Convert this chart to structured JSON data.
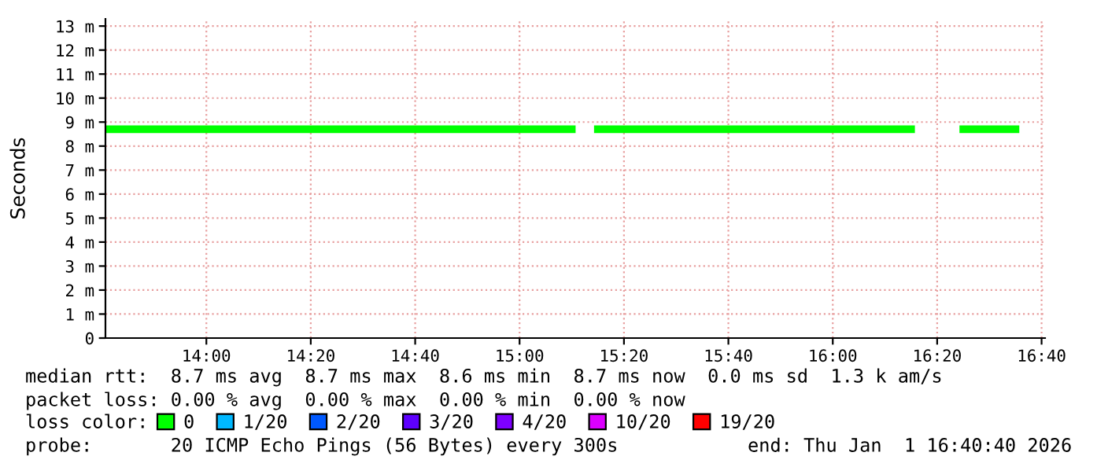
{
  "chart_data": {
    "type": "step",
    "ylabel": "Seconds",
    "x": [
      13.6833,
      13.75,
      13.8333,
      13.9167,
      14.0,
      14.0833,
      14.1667,
      14.25,
      14.3333,
      14.4167,
      14.5,
      14.5833,
      14.6667,
      14.75,
      14.8333,
      14.9167,
      15.0,
      15.0833,
      15.1667,
      15.25,
      15.3333,
      15.4167,
      15.5,
      15.5833,
      15.6667,
      15.75,
      15.8333,
      15.9167,
      16.0,
      16.0833,
      16.1667,
      16.25,
      16.3333,
      16.4167,
      16.5,
      16.5833
    ],
    "series": [
      {
        "name": "0",
        "color": "#00ff00",
        "values": [
          8.7,
          8.7,
          8.7,
          8.7,
          8.7,
          8.7,
          8.7,
          8.7,
          8.7,
          8.7,
          8.7,
          8.7,
          8.7,
          8.7,
          8.7,
          8.7,
          8.7,
          8.7,
          null,
          8.7,
          8.7,
          8.7,
          8.7,
          8.7,
          8.7,
          8.7,
          8.7,
          8.7,
          8.7,
          8.7,
          8.7,
          null,
          null,
          8.7,
          8.7,
          8.7
        ]
      },
      {
        "name": "1/20",
        "color": "#00b8ff",
        "values": [
          null,
          null,
          null,
          null,
          null,
          null,
          null,
          null,
          null,
          null,
          null,
          null,
          null,
          null,
          null,
          null,
          null,
          null,
          null,
          null,
          null,
          null,
          null,
          null,
          null,
          null,
          null,
          null,
          null,
          null,
          null,
          null,
          null,
          null,
          null,
          null
        ]
      },
      {
        "name": "2/20",
        "color": "#0059ff",
        "values": [
          null,
          null,
          null,
          null,
          null,
          null,
          null,
          null,
          null,
          null,
          null,
          null,
          null,
          null,
          null,
          null,
          null,
          null,
          null,
          null,
          null,
          null,
          null,
          null,
          null,
          null,
          null,
          null,
          null,
          null,
          null,
          null,
          null,
          null,
          null,
          null
        ]
      },
      {
        "name": "3/20",
        "color": "#5e00ff",
        "values": [
          null,
          null,
          null,
          null,
          null,
          null,
          null,
          null,
          null,
          null,
          null,
          null,
          null,
          null,
          null,
          null,
          null,
          null,
          null,
          null,
          null,
          null,
          null,
          null,
          null,
          null,
          null,
          null,
          null,
          null,
          null,
          null,
          null,
          null,
          null,
          null
        ]
      },
      {
        "name": "4/20",
        "color": "#7e00ff",
        "values": [
          null,
          null,
          null,
          null,
          null,
          null,
          null,
          null,
          null,
          null,
          null,
          null,
          null,
          null,
          null,
          null,
          null,
          null,
          null,
          null,
          null,
          null,
          null,
          null,
          null,
          null,
          null,
          null,
          null,
          null,
          null,
          null,
          null,
          null,
          null,
          null
        ]
      },
      {
        "name": "10/20",
        "color": "#dd00ff",
        "values": [
          null,
          null,
          null,
          null,
          null,
          null,
          null,
          null,
          null,
          null,
          null,
          null,
          null,
          null,
          null,
          null,
          null,
          null,
          null,
          null,
          null,
          null,
          null,
          null,
          null,
          null,
          null,
          null,
          null,
          null,
          null,
          null,
          null,
          null,
          null,
          null
        ]
      },
      {
        "name": "19/20",
        "color": "#ff0000",
        "values": [
          null,
          null,
          null,
          null,
          null,
          null,
          null,
          null,
          null,
          null,
          null,
          null,
          null,
          null,
          null,
          null,
          null,
          null,
          null,
          null,
          null,
          null,
          null,
          null,
          null,
          null,
          null,
          null,
          null,
          null,
          null,
          null,
          null,
          null,
          null,
          null
        ]
      }
    ],
    "legend": "bottom",
    "legend_title": "loss color:",
    "grid": true,
    "xlim": [
      13.6778,
      16.6778
    ],
    "xticks": [
      {
        "value": 14.0,
        "label": "14:00"
      },
      {
        "value": 14.3333,
        "label": "14:20"
      },
      {
        "value": 14.6667,
        "label": "14:40"
      },
      {
        "value": 15.0,
        "label": "15:00"
      },
      {
        "value": 15.3333,
        "label": "15:20"
      },
      {
        "value": 15.6667,
        "label": "15:40"
      },
      {
        "value": 16.0,
        "label": "16:00"
      },
      {
        "value": 16.3333,
        "label": "16:20"
      },
      {
        "value": 16.6667,
        "label": "16:40"
      }
    ],
    "ylim": [
      0,
      13.3
    ],
    "yticks": [
      0,
      {
        "value": 1,
        "label": "1 m"
      },
      {
        "value": 2,
        "label": "2 m"
      },
      {
        "value": 3,
        "label": "3 m"
      },
      {
        "value": 4,
        "label": "4 m"
      },
      {
        "value": 5,
        "label": "5 m"
      },
      {
        "value": 6,
        "label": "6 m"
      },
      {
        "value": 7,
        "label": "7 m"
      },
      {
        "value": 8,
        "label": "8 m"
      },
      {
        "value": 9,
        "label": "9 m"
      },
      {
        "value": 10,
        "label": "10 m"
      },
      {
        "value": 11,
        "label": "11 m"
      },
      {
        "value": 12,
        "label": "12 m"
      },
      {
        "value": 13,
        "label": "13 m"
      }
    ],
    "annotations": [
      "median rtt:  8.7 ms avg  8.7 ms max  8.6 ms min  8.7 ms now  0.0 ms sd  1.3 k am/s",
      "packet loss: 0.00 % avg  0.00 % max  0.00 % min  0.00 % now",
      "probe:       20 ICMP Echo Pings (56 Bytes) every 300s",
      "end: Thu Jan  1 16:40:40 2026"
    ]
  }
}
